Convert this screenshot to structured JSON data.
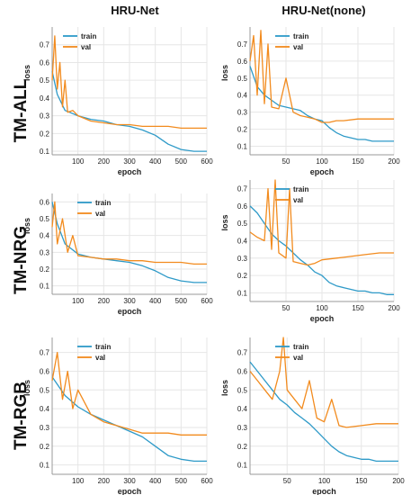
{
  "column_titles": [
    "HRU-Net",
    "HRU-Net(none)"
  ],
  "row_titles": [
    "TM-ALL",
    "TM-NRG",
    "TM-RGB"
  ],
  "colors": {
    "train": "#2e9ac8",
    "val": "#f28b1e",
    "grid": "#e6e6e6"
  },
  "chart_data": [
    {
      "type": "line",
      "row": "TM-ALL",
      "column": "HRU-Net",
      "xlabel": "epoch",
      "ylabel": "loss",
      "xlim": [
        0,
        600
      ],
      "ylim": [
        0.08,
        0.8
      ],
      "xticks": [
        100,
        200,
        300,
        400,
        500,
        600
      ],
      "yticks": [
        0.1,
        0.2,
        0.3,
        0.4,
        0.5,
        0.6,
        0.7
      ],
      "grid": true,
      "legend_position": "top-left",
      "series": [
        {
          "name": "train",
          "x": [
            0,
            20,
            50,
            100,
            150,
            200,
            250,
            300,
            350,
            400,
            450,
            500,
            550,
            600
          ],
          "y": [
            0.55,
            0.42,
            0.33,
            0.3,
            0.28,
            0.27,
            0.25,
            0.24,
            0.22,
            0.19,
            0.14,
            0.11,
            0.1,
            0.1
          ]
        },
        {
          "name": "val",
          "x": [
            0,
            10,
            20,
            30,
            40,
            50,
            60,
            80,
            100,
            150,
            200,
            250,
            300,
            350,
            400,
            450,
            500,
            550,
            600
          ],
          "y": [
            0.5,
            0.75,
            0.45,
            0.6,
            0.35,
            0.5,
            0.32,
            0.33,
            0.3,
            0.27,
            0.26,
            0.25,
            0.25,
            0.24,
            0.24,
            0.24,
            0.23,
            0.23,
            0.23
          ]
        }
      ]
    },
    {
      "type": "line",
      "row": "TM-ALL",
      "column": "HRU-Net(none)",
      "xlabel": "epoch",
      "ylabel": "loss",
      "xlim": [
        0,
        200
      ],
      "ylim": [
        0.05,
        0.8
      ],
      "xticks": [
        50,
        100,
        150,
        200
      ],
      "yticks": [
        0.1,
        0.2,
        0.3,
        0.4,
        0.5,
        0.6,
        0.7
      ],
      "grid": true,
      "legend_position": "top-center",
      "series": [
        {
          "name": "train",
          "x": [
            0,
            10,
            20,
            30,
            40,
            50,
            60,
            70,
            80,
            90,
            100,
            110,
            120,
            130,
            140,
            150,
            160,
            170,
            180,
            190,
            200
          ],
          "y": [
            0.57,
            0.45,
            0.4,
            0.37,
            0.34,
            0.33,
            0.32,
            0.31,
            0.28,
            0.26,
            0.25,
            0.21,
            0.18,
            0.16,
            0.15,
            0.14,
            0.14,
            0.13,
            0.13,
            0.13,
            0.13
          ]
        },
        {
          "name": "val",
          "x": [
            0,
            5,
            10,
            15,
            20,
            25,
            30,
            40,
            50,
            60,
            70,
            80,
            90,
            100,
            110,
            120,
            130,
            150,
            170,
            200
          ],
          "y": [
            0.6,
            0.75,
            0.4,
            0.78,
            0.35,
            0.7,
            0.33,
            0.32,
            0.5,
            0.3,
            0.28,
            0.27,
            0.26,
            0.24,
            0.24,
            0.25,
            0.25,
            0.26,
            0.26,
            0.26
          ]
        }
      ]
    },
    {
      "type": "line",
      "row": "TM-NRG",
      "column": "HRU-Net",
      "xlabel": "epoch",
      "ylabel": "loss",
      "xlim": [
        0,
        600
      ],
      "ylim": [
        0.05,
        0.65
      ],
      "xticks": [
        100,
        200,
        300,
        400,
        500,
        600
      ],
      "yticks": [
        0.1,
        0.2,
        0.3,
        0.4,
        0.5,
        0.6
      ],
      "grid": true,
      "legend_position": "top-center",
      "series": [
        {
          "name": "train",
          "x": [
            0,
            20,
            50,
            100,
            150,
            200,
            250,
            300,
            350,
            400,
            450,
            500,
            550,
            600
          ],
          "y": [
            0.6,
            0.47,
            0.35,
            0.29,
            0.27,
            0.26,
            0.25,
            0.24,
            0.22,
            0.19,
            0.15,
            0.13,
            0.12,
            0.12
          ]
        },
        {
          "name": "val",
          "x": [
            0,
            10,
            20,
            40,
            60,
            80,
            100,
            150,
            200,
            250,
            300,
            350,
            400,
            450,
            500,
            550,
            600
          ],
          "y": [
            0.45,
            0.6,
            0.35,
            0.5,
            0.3,
            0.4,
            0.28,
            0.27,
            0.26,
            0.26,
            0.25,
            0.25,
            0.24,
            0.24,
            0.24,
            0.23,
            0.23
          ]
        }
      ]
    },
    {
      "type": "line",
      "row": "TM-NRG",
      "column": "HRU-Net(none)",
      "xlabel": "epoch",
      "ylabel": "loss",
      "xlim": [
        0,
        200
      ],
      "ylim": [
        0.05,
        0.75
      ],
      "xticks": [
        50,
        100,
        150,
        200
      ],
      "yticks": [
        0.1,
        0.2,
        0.3,
        0.4,
        0.5,
        0.6,
        0.7
      ],
      "grid": true,
      "legend_position": "top-center",
      "series": [
        {
          "name": "train",
          "x": [
            0,
            10,
            20,
            30,
            40,
            50,
            60,
            70,
            80,
            90,
            100,
            110,
            120,
            130,
            140,
            150,
            160,
            170,
            180,
            190,
            200
          ],
          "y": [
            0.6,
            0.56,
            0.5,
            0.44,
            0.4,
            0.37,
            0.33,
            0.29,
            0.26,
            0.22,
            0.2,
            0.16,
            0.14,
            0.13,
            0.12,
            0.11,
            0.11,
            0.1,
            0.1,
            0.09,
            0.09
          ]
        },
        {
          "name": "val",
          "x": [
            0,
            10,
            20,
            25,
            30,
            35,
            40,
            50,
            55,
            60,
            70,
            80,
            90,
            100,
            120,
            140,
            160,
            180,
            200
          ],
          "y": [
            0.45,
            0.42,
            0.4,
            0.7,
            0.35,
            0.75,
            0.33,
            0.3,
            0.7,
            0.28,
            0.27,
            0.26,
            0.27,
            0.29,
            0.3,
            0.31,
            0.32,
            0.33,
            0.33
          ]
        }
      ]
    },
    {
      "type": "line",
      "row": "TM-RGB",
      "column": "HRU-Net",
      "xlabel": "epoch",
      "ylabel": "loss",
      "xlim": [
        0,
        600
      ],
      "ylim": [
        0.05,
        0.78
      ],
      "xticks": [
        100,
        200,
        300,
        400,
        500,
        600
      ],
      "yticks": [
        0.1,
        0.2,
        0.3,
        0.4,
        0.5,
        0.6,
        0.7
      ],
      "grid": true,
      "legend_position": "top-center",
      "series": [
        {
          "name": "train",
          "x": [
            0,
            50,
            100,
            150,
            200,
            250,
            300,
            350,
            400,
            450,
            500,
            550,
            600
          ],
          "y": [
            0.57,
            0.47,
            0.41,
            0.37,
            0.34,
            0.31,
            0.28,
            0.25,
            0.2,
            0.15,
            0.13,
            0.12,
            0.12
          ]
        },
        {
          "name": "val",
          "x": [
            0,
            20,
            40,
            60,
            80,
            100,
            150,
            200,
            250,
            300,
            350,
            400,
            450,
            500,
            550,
            600
          ],
          "y": [
            0.55,
            0.7,
            0.45,
            0.6,
            0.4,
            0.5,
            0.37,
            0.33,
            0.31,
            0.29,
            0.27,
            0.27,
            0.27,
            0.26,
            0.26,
            0.26
          ]
        }
      ]
    },
    {
      "type": "line",
      "row": "TM-RGB",
      "column": "HRU-Net(none)",
      "xlabel": "epoch",
      "ylabel": "loss",
      "xlim": [
        0,
        200
      ],
      "ylim": [
        0.05,
        0.78
      ],
      "xticks": [
        50,
        100,
        150,
        200
      ],
      "yticks": [
        0.1,
        0.2,
        0.3,
        0.4,
        0.5,
        0.6,
        0.7
      ],
      "grid": true,
      "legend_position": "top-center",
      "series": [
        {
          "name": "train",
          "x": [
            0,
            10,
            20,
            30,
            40,
            50,
            60,
            70,
            80,
            90,
            100,
            110,
            120,
            130,
            140,
            150,
            160,
            170,
            180,
            190,
            200
          ],
          "y": [
            0.65,
            0.6,
            0.55,
            0.5,
            0.45,
            0.42,
            0.38,
            0.35,
            0.32,
            0.28,
            0.24,
            0.2,
            0.17,
            0.15,
            0.14,
            0.13,
            0.13,
            0.12,
            0.12,
            0.12,
            0.12
          ]
        },
        {
          "name": "val",
          "x": [
            0,
            10,
            20,
            30,
            40,
            45,
            50,
            60,
            70,
            80,
            90,
            100,
            110,
            120,
            130,
            150,
            170,
            200
          ],
          "y": [
            0.6,
            0.55,
            0.5,
            0.45,
            0.6,
            0.78,
            0.5,
            0.45,
            0.4,
            0.55,
            0.35,
            0.33,
            0.45,
            0.31,
            0.3,
            0.31,
            0.32,
            0.32
          ]
        }
      ]
    }
  ]
}
